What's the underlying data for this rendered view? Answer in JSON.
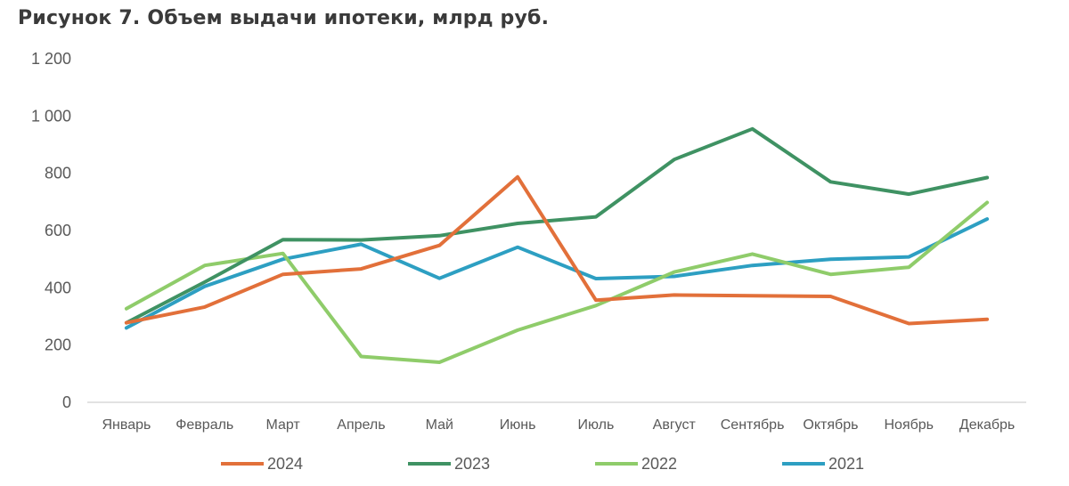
{
  "title": "Рисунок 7. Объем выдачи ипотеки, млрд руб.",
  "chart_data": {
    "type": "line",
    "title": "Рисунок 7. Объем выдачи ипотеки, млрд руб.",
    "xlabel": "",
    "ylabel": "",
    "categories": [
      "Январь",
      "Февраль",
      "Март",
      "Апрель",
      "Май",
      "Июнь",
      "Июль",
      "Август",
      "Сентябрь",
      "Октябрь",
      "Ноябрь",
      "Декабрь"
    ],
    "ylim": [
      0,
      1200
    ],
    "yticks": [
      0,
      200,
      400,
      600,
      800,
      1000,
      1200
    ],
    "ytick_labels": [
      "0",
      "200",
      "400",
      "600",
      "800",
      "1 000",
      "1 200"
    ],
    "grid": false,
    "legend_position": "bottom",
    "series": [
      {
        "name": "2024",
        "color": "#e2703a",
        "values": [
          278,
          333,
          447,
          466,
          548,
          787,
          357,
          375,
          372,
          370,
          275,
          290
        ]
      },
      {
        "name": "2023",
        "color": "#3f9263",
        "values": [
          278,
          420,
          568,
          567,
          582,
          625,
          648,
          848,
          955,
          770,
          727,
          785
        ]
      },
      {
        "name": "2022",
        "color": "#8fcc6a",
        "values": [
          327,
          478,
          520,
          160,
          140,
          252,
          338,
          455,
          518,
          447,
          472,
          698
        ]
      },
      {
        "name": "2021",
        "color": "#2d9fc2",
        "values": [
          260,
          405,
          500,
          552,
          433,
          542,
          432,
          440,
          478,
          500,
          508,
          640
        ]
      }
    ]
  }
}
